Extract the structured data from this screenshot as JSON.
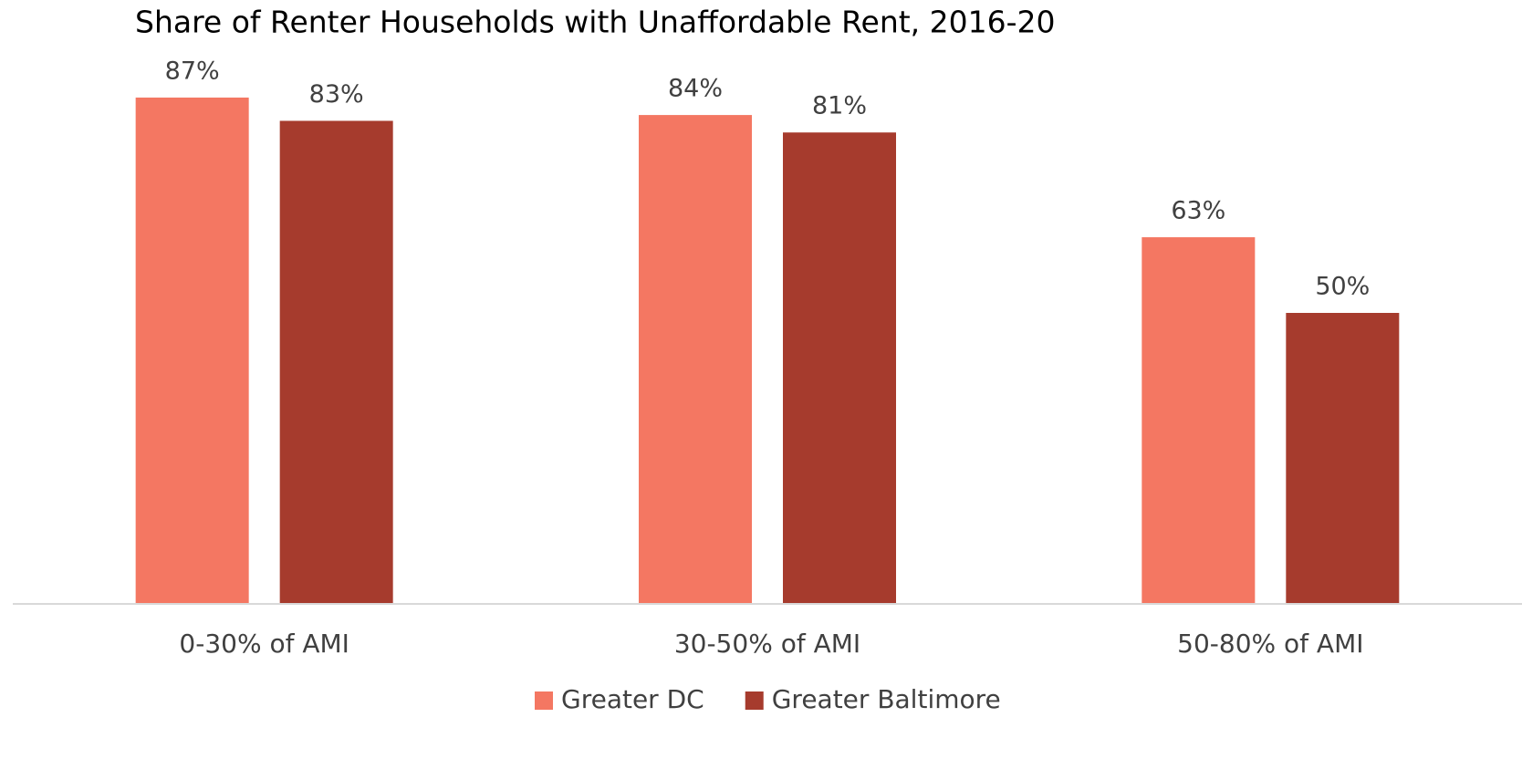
{
  "chart_data": {
    "type": "bar",
    "title": "Share of Renter Households with Unaffordable Rent, 2016-20",
    "categories": [
      "0-30% of AMI",
      "30-50% of AMI",
      "50-80% of AMI"
    ],
    "series": [
      {
        "name": "Greater DC",
        "color": "#f47762",
        "values": [
          87,
          84,
          63
        ],
        "value_labels": [
          "87%",
          "84%",
          "63%"
        ]
      },
      {
        "name": "Greater Baltimore",
        "color": "#a63b2d",
        "values": [
          83,
          81,
          50
        ],
        "value_labels": [
          "83%",
          "81%",
          "50%"
        ]
      }
    ],
    "ylim": [
      0,
      100
    ],
    "legend": "bottom"
  }
}
